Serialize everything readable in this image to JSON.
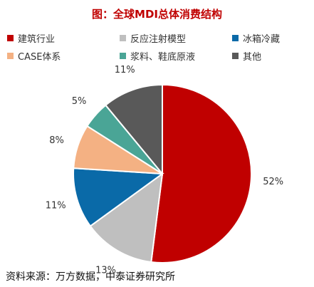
{
  "title_prefix": "图：",
  "title_main": "全球MDI总体消费结构",
  "source": "资料来源：万方数据，中泰证券研究所",
  "chart_data": {
    "type": "pie",
    "title": "全球MDI总体消费结构",
    "legend_position": "top",
    "start_angle_deg": -90,
    "direction": "clockwise",
    "slices": [
      {
        "name": "建筑行业",
        "value": 52,
        "label": "52%",
        "color": "#c00000"
      },
      {
        "name": "反应注射模型",
        "value": 13,
        "label": "13%",
        "color": "#bfbfbf"
      },
      {
        "name": "冰箱冷藏",
        "value": 11,
        "label": "11%",
        "color": "#0a6aa8"
      },
      {
        "name": "CASE体系",
        "value": 8,
        "label": "8%",
        "color": "#f4b183"
      },
      {
        "name": "浆料、鞋底原液",
        "value": 5,
        "label": "5%",
        "color": "#4aa596"
      },
      {
        "name": "其他",
        "value": 11,
        "label": "11%",
        "color": "#595959"
      }
    ],
    "legend_order": [
      0,
      1,
      2,
      3,
      4,
      5
    ]
  }
}
